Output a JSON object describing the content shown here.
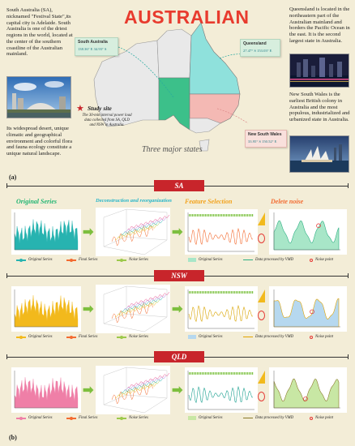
{
  "header": {
    "title": "AUSTRALIAN",
    "study_site": "Study site",
    "study_desc": "The 30-min interval power load data collected from SA, QLD and NSW in Australia.",
    "subtitle": "Three major states"
  },
  "texts": {
    "sa_intro": "South Australia (SA), nicknamed \"Festival State\",its capital city is Adelaide. South Australia is one of the driest regions in the world, located at the center of the southern coastline of the Australian mainland.",
    "sa_extra": "Its widespread desert, unique climatic and geographical environment and colorful flora and fauna ecology constitute a unique natural landscape.",
    "qld_intro": "Queensland is located in the northeastern part of the Australian mainland and borders the Pacific Ocean in the east. It is the second largest state in Australia.",
    "nsw_intro": "New South Wales is the earliest British colony in Australia and the most populous, industrialized and urbanized state in Australia."
  },
  "cards": {
    "sa": {
      "name": "South Australia",
      "coord": "138.36° E 34.93° S"
    },
    "qld": {
      "name": "Queensland",
      "coord": "27.47° S 153.03° E"
    },
    "nsw": {
      "name": "New South Wales",
      "coord": "33.95° S 150.52° E"
    }
  },
  "panels": {
    "a": "(a)",
    "b": "(b)"
  },
  "sections": [
    {
      "state": "SA",
      "color": "#27b3b0",
      "stages": [
        "Original Series",
        "Deconstruction and reorganization",
        "Feature Selection",
        "Delete noise"
      ],
      "legend_left": [
        "Original Series",
        "Final Series",
        "Noise Series"
      ],
      "legend_right": [
        "Original Series",
        "Data processed by VMD",
        "Noise point"
      ]
    },
    {
      "state": "NSW",
      "color": "#f2b91c",
      "stages": [],
      "legend_left": [
        "Original Series",
        "Final Series",
        "Noise Series"
      ],
      "legend_right": [
        "Original Series",
        "Data processed by VMD",
        "Noise point"
      ]
    },
    {
      "state": "QLD",
      "color": "#ef7fa7",
      "stages": [],
      "legend_left": [
        "Original Series",
        "Final Series",
        "Noise Series"
      ],
      "legend_right": [
        "Original Series",
        "Data processed by VMD",
        "Noise point"
      ]
    }
  ],
  "colors": {
    "stage_original": "#22b573",
    "stage_decon": "#25b5c9",
    "stage_feature": "#f3a21b",
    "stage_delete": "#f36b30",
    "sa_region": "#3cc08a",
    "qld_region": "#8fe1dc",
    "nsw_region": "#f4b9b4",
    "grey_region": "#e9e9e9"
  }
}
